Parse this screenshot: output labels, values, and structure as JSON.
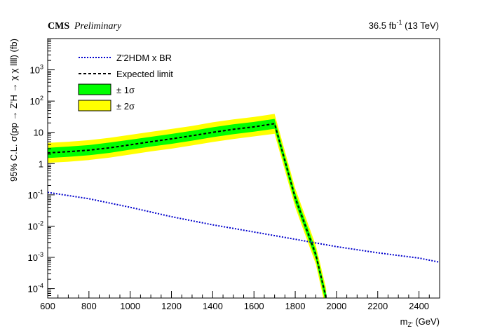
{
  "header": {
    "experiment": "CMS",
    "status": "Preliminary",
    "lumi_value": "36.5 fb",
    "lumi_exp": "-1",
    "lumi_energy": " (13 TeV)"
  },
  "chart_data": {
    "type": "line",
    "xlabel": "m",
    "xlabel_sub": "Z'",
    "xlabel_unit": " (GeV)",
    "ylabel": "95% C.L. σ(pp → Z'H → χ χ llll) (fb)",
    "xlim": [
      600,
      2500
    ],
    "ylim": [
      5e-05,
      10000
    ],
    "yscale": "log",
    "grid": false,
    "legend_position": "top-left",
    "x_ticks": [
      600,
      800,
      1000,
      1200,
      1400,
      1600,
      1800,
      2000,
      2200,
      2400
    ],
    "y_ticks": [
      {
        "value": 0.0001,
        "base": "10",
        "exp": "-4"
      },
      {
        "value": 0.001,
        "base": "10",
        "exp": "-3"
      },
      {
        "value": 0.01,
        "base": "10",
        "exp": "-2"
      },
      {
        "value": 0.1,
        "base": "10",
        "exp": "-1"
      },
      {
        "value": 1,
        "base": "1",
        "exp": ""
      },
      {
        "value": 10,
        "base": "10",
        "exp": ""
      },
      {
        "value": 100,
        "base": "10",
        "exp": "2"
      },
      {
        "value": 1000,
        "base": "10",
        "exp": "3"
      }
    ],
    "series": [
      {
        "name": "Z'2HDM x BR",
        "style": "dotted",
        "color": "#0000cc",
        "x": [
          600,
          800,
          1000,
          1200,
          1400,
          1600,
          1800,
          2000,
          2200,
          2400,
          2500
        ],
        "values": [
          0.12,
          0.075,
          0.04,
          0.02,
          0.011,
          0.0065,
          0.0038,
          0.0022,
          0.0014,
          0.00095,
          0.0007
        ]
      },
      {
        "name": "Expected limit",
        "style": "dashed",
        "color": "#000000",
        "x": [
          600,
          700,
          800,
          900,
          1000,
          1100,
          1200,
          1300,
          1400,
          1500,
          1600,
          1700,
          1800,
          1900,
          1950
        ],
        "values": [
          2.2,
          2.4,
          2.7,
          3.2,
          4.0,
          5.0,
          6.2,
          7.8,
          10,
          12.5,
          15,
          19,
          0.08,
          0.0012,
          5e-05
        ]
      },
      {
        "name": "± 1σ",
        "style": "band",
        "color": "#00ff00",
        "x": [
          600,
          700,
          800,
          900,
          1000,
          1100,
          1200,
          1300,
          1400,
          1500,
          1600,
          1700,
          1800,
          1900,
          1950
        ],
        "low": [
          1.5,
          1.65,
          1.85,
          2.2,
          2.8,
          3.5,
          4.3,
          5.4,
          7.0,
          8.7,
          10.5,
          13.0,
          0.055,
          0.00085,
          3e-05
        ],
        "high": [
          3.2,
          3.5,
          3.9,
          4.7,
          5.8,
          7.2,
          8.9,
          11.2,
          14.5,
          18,
          21.5,
          27,
          0.115,
          0.0017,
          7e-05
        ]
      },
      {
        "name": "± 2σ",
        "style": "band",
        "color": "#ffff00",
        "x": [
          600,
          700,
          800,
          900,
          1000,
          1100,
          1200,
          1300,
          1400,
          1500,
          1600,
          1700,
          1800,
          1900,
          1950
        ],
        "low": [
          1.05,
          1.15,
          1.3,
          1.55,
          1.95,
          2.45,
          3.0,
          3.8,
          4.9,
          6.1,
          7.4,
          9.0,
          0.04,
          0.0006,
          2e-05
        ],
        "high": [
          4.6,
          5.0,
          5.6,
          6.7,
          8.3,
          10.4,
          12.8,
          16,
          21,
          26,
          31,
          39,
          0.16,
          0.0024,
          0.0001
        ]
      }
    ],
    "legend": [
      {
        "label": "Z'2HDM x BR",
        "kind": "dotted",
        "color": "#0000cc"
      },
      {
        "label": "Expected limit",
        "kind": "dashed",
        "color": "#000000"
      },
      {
        "label": "± 1σ",
        "kind": "box",
        "color": "#00ff00"
      },
      {
        "label": "± 2σ",
        "kind": "box",
        "color": "#ffff00"
      }
    ]
  }
}
